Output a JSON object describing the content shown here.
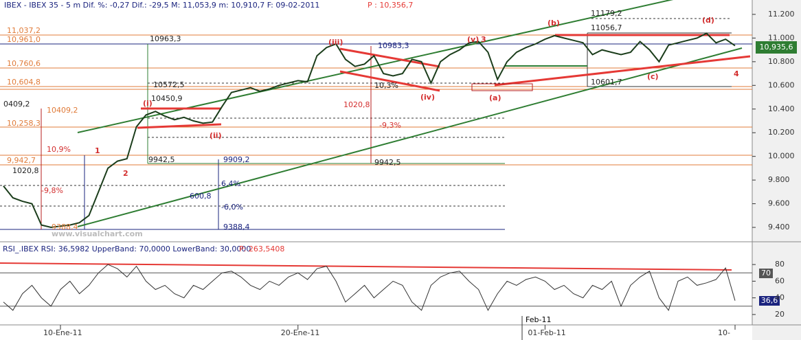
{
  "chart_data": [
    {
      "type": "line",
      "header": "IBEX - IBEX 35 - 5 m Dif. %: -0,27 Dif.: -29,5 M: 11,053,9 m: 10,910,7 F: 09-02-2011",
      "header_price": "P : 10,356,7",
      "price_label": "10,935,6",
      "month_label": "Feb-11",
      "color": "#1b3d1b",
      "categories": [
        null,
        null,
        null,
        null,
        null,
        null,
        "10-Ene-11",
        null,
        null,
        null,
        null,
        null,
        null,
        null,
        null,
        null,
        null,
        null,
        null,
        null,
        null,
        null,
        null,
        null,
        null,
        null,
        null,
        null,
        null,
        null,
        null,
        "20-Ene-11",
        null,
        null,
        null,
        null,
        null,
        null,
        null,
        null,
        null,
        null,
        null,
        null,
        null,
        null,
        null,
        null,
        null,
        null,
        null,
        null,
        null,
        null,
        null,
        null,
        null,
        "01-Feb-11",
        null,
        null,
        null,
        null,
        null,
        null,
        null,
        null,
        null,
        null,
        null,
        null,
        null,
        null,
        null,
        null,
        null,
        null,
        null,
        "10-"
      ],
      "values": [
        9750,
        9650,
        9620,
        9600,
        9420,
        9400,
        9410,
        9420,
        9440,
        9500,
        9700,
        9900,
        9960,
        9980,
        10250,
        10350,
        10380,
        10340,
        10310,
        10330,
        10300,
        10280,
        10290,
        10420,
        10540,
        10560,
        10580,
        10550,
        10570,
        10600,
        10620,
        10640,
        10630,
        10850,
        10920,
        10950,
        10820,
        10760,
        10780,
        10850,
        10700,
        10680,
        10700,
        10820,
        10800,
        10620,
        10800,
        10860,
        10900,
        10960,
        10970,
        10880,
        10650,
        10800,
        10880,
        10920,
        10950,
        10990,
        11020,
        11000,
        10980,
        10960,
        10860,
        10900,
        10880,
        10860,
        10880,
        10970,
        10900,
        10800,
        10940,
        10960,
        10980,
        11000,
        11040,
        10960,
        10990,
        10935
      ],
      "ylim": [
        9290,
        11275
      ],
      "yticks": [
        {
          "value": 9400,
          "label": "9.400"
        },
        {
          "value": 9600,
          "label": "9.600"
        },
        {
          "value": 9800,
          "label": "9.800"
        },
        {
          "value": 10000,
          "label": "10.000"
        },
        {
          "value": 10200,
          "label": "10.200"
        },
        {
          "value": 10400,
          "label": "10.400"
        },
        {
          "value": 10600,
          "label": "10.600"
        },
        {
          "value": 10800,
          "label": "10.800"
        },
        {
          "value": 11000,
          "label": "11.000"
        },
        {
          "value": 11200,
          "label": "11.200"
        }
      ],
      "annotations": [
        "11,037,2",
        "10,961,0",
        "10,760,6",
        "10,604,8",
        "10,258,3",
        "9,942,7",
        "10409,2",
        "0409,2",
        "10963,3",
        "10572,5",
        "10450,9",
        "9942,5",
        "9909,2",
        "600,8",
        "-6,0%",
        "6,4%",
        "1020,8",
        "-9,8%",
        "10,9%",
        "9388,4",
        "9388,4",
        "10983,3",
        "1020,8",
        "-9,3%",
        "9942,5",
        "10,3%",
        "11179,2",
        "11056,7",
        "10601,7",
        "(i)",
        "(ii)",
        "(iii)",
        "(iv)",
        "(v)",
        "(a)",
        "(b)",
        "(c)",
        "(d)",
        "1",
        "2",
        "3",
        "4",
        "www.visualchart.com"
      ]
    },
    {
      "type": "line",
      "header": "RSI_.IBEX RSI: 36,5982 UpperBand: 70,0000 LowerBand: 30,0000",
      "header_price": "P: 263,5408",
      "rsi_label": "36,6",
      "upper_label": "70",
      "color": "#333333",
      "values": [
        35,
        25,
        45,
        55,
        40,
        30,
        50,
        60,
        45,
        55,
        70,
        80,
        75,
        65,
        78,
        60,
        50,
        55,
        45,
        40,
        55,
        50,
        60,
        70,
        72,
        65,
        55,
        50,
        60,
        55,
        65,
        70,
        62,
        75,
        78,
        60,
        35,
        45,
        55,
        40,
        50,
        60,
        55,
        35,
        25,
        55,
        65,
        70,
        72,
        60,
        50,
        25,
        45,
        60,
        55,
        62,
        65,
        60,
        50,
        55,
        45,
        40,
        55,
        50,
        60,
        30,
        55,
        65,
        72,
        40,
        25,
        60,
        65,
        55,
        58,
        62,
        76,
        36.6
      ],
      "ylim": [
        10,
        90
      ],
      "yticks": [
        20,
        40,
        60,
        80
      ]
    }
  ]
}
